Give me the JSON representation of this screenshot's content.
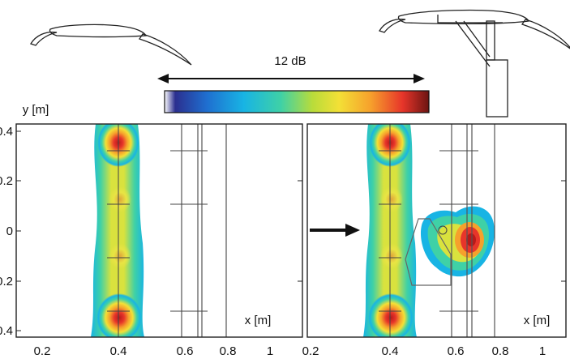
{
  "colorbar": {
    "label": "12 dB",
    "colors": [
      "#ffffff",
      "#2b2f8f",
      "#1f6fd0",
      "#18b4e4",
      "#3fd1a6",
      "#b9dc3a",
      "#f3e036",
      "#f6a02c",
      "#e7352a",
      "#6b1412"
    ]
  },
  "axes": {
    "y_label": "y [m]",
    "x_label": "x [m]",
    "y_ticks": [
      "0.4",
      "0.2",
      "0",
      "-0.2",
      "-0.4"
    ],
    "x_ticks": [
      "0.2",
      "0.4",
      "0.6",
      "0.8",
      "1"
    ]
  },
  "panels": [
    {
      "id": "left",
      "airfoil": "clean-high-lift-wing"
    },
    {
      "id": "right",
      "airfoil": "wing-with-landing-gear",
      "arrow": "flow-arrow"
    }
  ]
}
